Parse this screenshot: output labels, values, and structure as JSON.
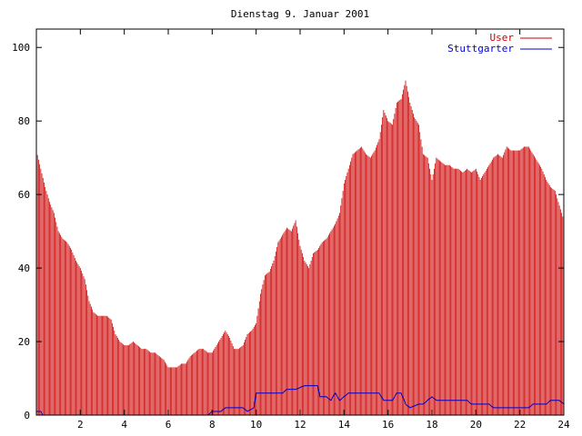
{
  "chart_data": {
    "type": "bar",
    "title": "Dienstag 9. Januar 2001",
    "xlabel": "",
    "ylabel": "",
    "xlim": [
      0,
      24
    ],
    "ylim": [
      0,
      105
    ],
    "x_ticks": [
      2,
      4,
      6,
      8,
      10,
      12,
      14,
      16,
      18,
      20,
      22,
      24
    ],
    "y_ticks": [
      0,
      20,
      40,
      60,
      80,
      100
    ],
    "grid": false,
    "legend_position": "top-right",
    "series": [
      {
        "name": "User",
        "color": "#cc0000",
        "style": "impulses",
        "points": [
          [
            0.0,
            72
          ],
          [
            0.2,
            67
          ],
          [
            0.4,
            62
          ],
          [
            0.6,
            58
          ],
          [
            0.8,
            55
          ],
          [
            1.0,
            50
          ],
          [
            1.2,
            48
          ],
          [
            1.4,
            47
          ],
          [
            1.6,
            45
          ],
          [
            1.8,
            42
          ],
          [
            2.0,
            40
          ],
          [
            2.2,
            37
          ],
          [
            2.4,
            31
          ],
          [
            2.6,
            28
          ],
          [
            2.8,
            27
          ],
          [
            3.0,
            27
          ],
          [
            3.2,
            27
          ],
          [
            3.4,
            26
          ],
          [
            3.6,
            22
          ],
          [
            3.8,
            20
          ],
          [
            4.0,
            19
          ],
          [
            4.2,
            19
          ],
          [
            4.4,
            20
          ],
          [
            4.6,
            19
          ],
          [
            4.8,
            18
          ],
          [
            5.0,
            18
          ],
          [
            5.2,
            17
          ],
          [
            5.4,
            17
          ],
          [
            5.6,
            16
          ],
          [
            5.8,
            15
          ],
          [
            6.0,
            13
          ],
          [
            6.2,
            13
          ],
          [
            6.4,
            13
          ],
          [
            6.6,
            14
          ],
          [
            6.8,
            14
          ],
          [
            7.0,
            16
          ],
          [
            7.2,
            17
          ],
          [
            7.4,
            18
          ],
          [
            7.6,
            18
          ],
          [
            7.8,
            17
          ],
          [
            8.0,
            17
          ],
          [
            8.2,
            19
          ],
          [
            8.4,
            21
          ],
          [
            8.6,
            23
          ],
          [
            8.8,
            21
          ],
          [
            9.0,
            18
          ],
          [
            9.2,
            18
          ],
          [
            9.4,
            19
          ],
          [
            9.6,
            22
          ],
          [
            9.8,
            23
          ],
          [
            10.0,
            25
          ],
          [
            10.2,
            33
          ],
          [
            10.4,
            38
          ],
          [
            10.6,
            39
          ],
          [
            10.8,
            42
          ],
          [
            11.0,
            47
          ],
          [
            11.2,
            49
          ],
          [
            11.4,
            51
          ],
          [
            11.6,
            50
          ],
          [
            11.8,
            53
          ],
          [
            12.0,
            46
          ],
          [
            12.2,
            42
          ],
          [
            12.4,
            40
          ],
          [
            12.6,
            44
          ],
          [
            12.8,
            45
          ],
          [
            13.0,
            47
          ],
          [
            13.2,
            48
          ],
          [
            13.4,
            50
          ],
          [
            13.6,
            52
          ],
          [
            13.8,
            55
          ],
          [
            14.0,
            63
          ],
          [
            14.2,
            67
          ],
          [
            14.4,
            71
          ],
          [
            14.6,
            72
          ],
          [
            14.8,
            73
          ],
          [
            15.0,
            71
          ],
          [
            15.2,
            70
          ],
          [
            15.4,
            72
          ],
          [
            15.6,
            75
          ],
          [
            15.8,
            83
          ],
          [
            16.0,
            80
          ],
          [
            16.2,
            79
          ],
          [
            16.4,
            85
          ],
          [
            16.6,
            86
          ],
          [
            16.8,
            91
          ],
          [
            17.0,
            85
          ],
          [
            17.2,
            81
          ],
          [
            17.4,
            79
          ],
          [
            17.6,
            71
          ],
          [
            17.8,
            70
          ],
          [
            18.0,
            64
          ],
          [
            18.2,
            70
          ],
          [
            18.4,
            69
          ],
          [
            18.6,
            68
          ],
          [
            18.8,
            68
          ],
          [
            19.0,
            67
          ],
          [
            19.2,
            67
          ],
          [
            19.4,
            66
          ],
          [
            19.6,
            67
          ],
          [
            19.8,
            66
          ],
          [
            20.0,
            67
          ],
          [
            20.2,
            64
          ],
          [
            20.4,
            66
          ],
          [
            20.6,
            68
          ],
          [
            20.8,
            70
          ],
          [
            21.0,
            71
          ],
          [
            21.2,
            70
          ],
          [
            21.4,
            73
          ],
          [
            21.6,
            72
          ],
          [
            21.8,
            72
          ],
          [
            22.0,
            72
          ],
          [
            22.2,
            73
          ],
          [
            22.4,
            73
          ],
          [
            22.6,
            71
          ],
          [
            22.8,
            69
          ],
          [
            23.0,
            67
          ],
          [
            23.2,
            64
          ],
          [
            23.4,
            62
          ],
          [
            23.6,
            61
          ],
          [
            23.8,
            57
          ],
          [
            24.0,
            53
          ]
        ]
      },
      {
        "name": "Stuttgarter",
        "color": "#0000cc",
        "style": "line",
        "points": [
          [
            0.0,
            1
          ],
          [
            0.2,
            1
          ],
          [
            0.3,
            0
          ],
          [
            1.0,
            0
          ],
          [
            2.0,
            0
          ],
          [
            3.0,
            0
          ],
          [
            4.0,
            0
          ],
          [
            5.0,
            0
          ],
          [
            6.0,
            0
          ],
          [
            7.0,
            0
          ],
          [
            7.8,
            0
          ],
          [
            8.0,
            1
          ],
          [
            8.4,
            1
          ],
          [
            8.6,
            2
          ],
          [
            9.0,
            2
          ],
          [
            9.4,
            2
          ],
          [
            9.6,
            1
          ],
          [
            9.9,
            2
          ],
          [
            10.0,
            6
          ],
          [
            10.2,
            6
          ],
          [
            10.6,
            6
          ],
          [
            11.0,
            6
          ],
          [
            11.2,
            6
          ],
          [
            11.4,
            7
          ],
          [
            11.8,
            7
          ],
          [
            12.2,
            8
          ],
          [
            12.6,
            8
          ],
          [
            12.8,
            8
          ],
          [
            12.9,
            5
          ],
          [
            13.2,
            5
          ],
          [
            13.4,
            4
          ],
          [
            13.6,
            6
          ],
          [
            13.8,
            4
          ],
          [
            14.0,
            5
          ],
          [
            14.2,
            6
          ],
          [
            14.6,
            6
          ],
          [
            15.0,
            6
          ],
          [
            15.2,
            6
          ],
          [
            15.6,
            6
          ],
          [
            15.8,
            4
          ],
          [
            16.2,
            4
          ],
          [
            16.4,
            6
          ],
          [
            16.6,
            6
          ],
          [
            16.8,
            3
          ],
          [
            17.0,
            2
          ],
          [
            17.4,
            3
          ],
          [
            17.6,
            3
          ],
          [
            17.8,
            4
          ],
          [
            18.0,
            5
          ],
          [
            18.2,
            4
          ],
          [
            18.6,
            4
          ],
          [
            19.0,
            4
          ],
          [
            19.6,
            4
          ],
          [
            19.8,
            3
          ],
          [
            20.4,
            3
          ],
          [
            20.6,
            3
          ],
          [
            20.8,
            2
          ],
          [
            21.4,
            2
          ],
          [
            22.0,
            2
          ],
          [
            22.4,
            2
          ],
          [
            22.6,
            3
          ],
          [
            23.0,
            3
          ],
          [
            23.2,
            3
          ],
          [
            23.4,
            4
          ],
          [
            23.8,
            4
          ],
          [
            24.0,
            3
          ]
        ]
      }
    ]
  }
}
